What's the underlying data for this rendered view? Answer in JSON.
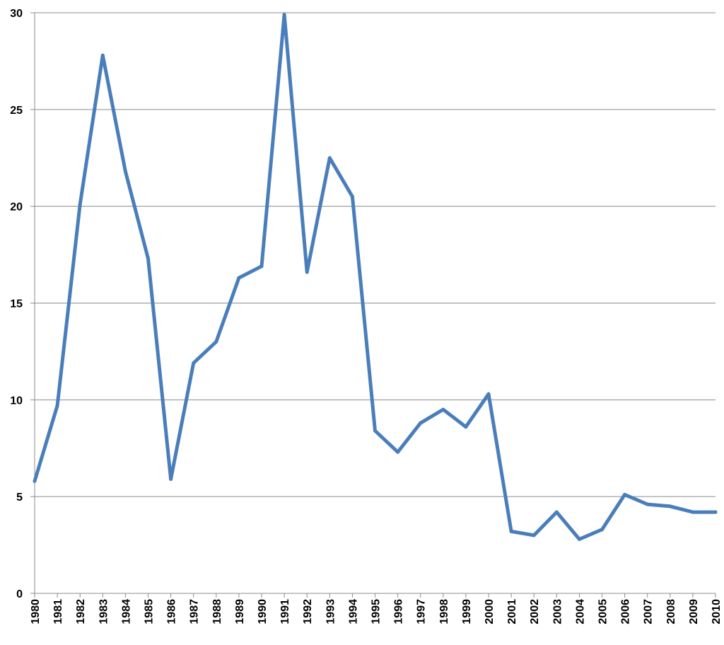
{
  "chart_data": {
    "type": "line",
    "title": "",
    "xlabel": "",
    "ylabel": "",
    "categories": [
      "1980",
      "1981",
      "1982",
      "1983",
      "1984",
      "1985",
      "1986",
      "1987",
      "1988",
      "1989",
      "1990",
      "1991",
      "1992",
      "1993",
      "1994",
      "1995",
      "1996",
      "1997",
      "1998",
      "1999",
      "2000",
      "2001",
      "2002",
      "2003",
      "2004",
      "2005",
      "2006",
      "2007",
      "2008",
      "2009",
      "2010"
    ],
    "series": [
      {
        "values": [
          5.8,
          9.7,
          20.1,
          27.8,
          21.8,
          17.3,
          5.9,
          11.9,
          13.0,
          16.3,
          16.9,
          29.9,
          16.6,
          22.5,
          20.5,
          8.4,
          7.3,
          8.8,
          9.5,
          8.6,
          10.3,
          3.2,
          3.0,
          4.2,
          2.8,
          3.3,
          5.1,
          4.6,
          4.5,
          4.2,
          4.2
        ]
      }
    ],
    "ylim": [
      0,
      30
    ],
    "yticks": [
      0,
      5,
      10,
      15,
      20,
      25,
      30
    ],
    "grid": true,
    "legend": "none",
    "line_color": "#4a7ebb",
    "grid_color": "#8c8c8c"
  }
}
